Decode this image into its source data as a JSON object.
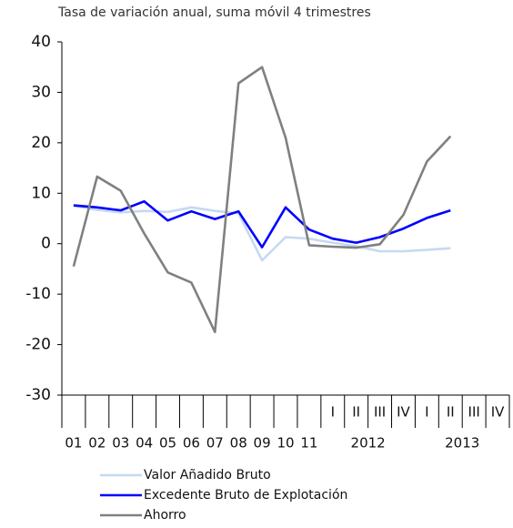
{
  "chart_data": {
    "type": "line",
    "subtitle": "Tasa de variación anual, suma móvil 4 trimestres",
    "categories": [
      "01",
      "02",
      "03",
      "04",
      "05",
      "06",
      "07",
      "08",
      "09",
      "10",
      "11",
      "I",
      "II",
      "III",
      "IV",
      "I",
      "II",
      "III",
      "IV"
    ],
    "year_groups": [
      "2012",
      "2013"
    ],
    "series": [
      {
        "name": "Valor Añadido Bruto",
        "color": "#c6d9f1",
        "values": [
          7.5,
          6.7,
          6.2,
          6.5,
          6.3,
          7.2,
          6.5,
          6.0,
          -3.3,
          1.3,
          1.0,
          0.2,
          -0.5,
          -1.5,
          -1.5,
          -1.2,
          -0.9,
          null,
          null
        ]
      },
      {
        "name": "Excedente Bruto de Explotación",
        "color": "#0000ff",
        "values": [
          7.6,
          7.2,
          6.6,
          8.4,
          4.6,
          6.4,
          4.9,
          6.4,
          -0.7,
          7.2,
          2.8,
          1.0,
          0.2,
          1.3,
          3.0,
          5.1,
          6.6,
          null,
          null
        ]
      },
      {
        "name": "Ahorro",
        "color": "#808080",
        "values": [
          -4.5,
          13.3,
          10.5,
          2.0,
          -5.7,
          -7.7,
          -17.5,
          31.8,
          35.0,
          21.0,
          -0.3,
          -0.6,
          -0.8,
          -0.1,
          5.7,
          16.3,
          21.3,
          null,
          null
        ]
      }
    ],
    "ylim": [
      -30,
      40
    ],
    "yticks": [
      -30,
      -20,
      -10,
      0,
      10,
      20,
      30,
      40
    ]
  }
}
